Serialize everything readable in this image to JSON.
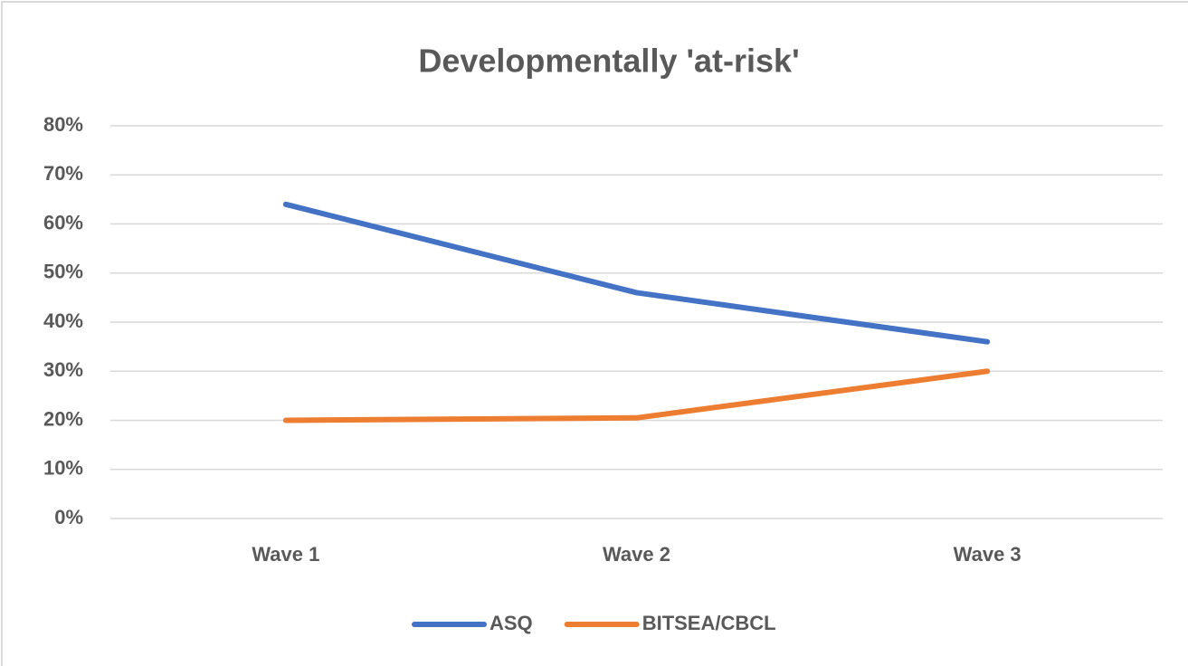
{
  "chart_data": {
    "type": "line",
    "title": "Developmentally 'at-risk'",
    "categories": [
      "Wave 1",
      "Wave 2",
      "Wave 3"
    ],
    "series": [
      {
        "name": "ASQ",
        "color": "#4472c4",
        "values": [
          64,
          46,
          36
        ]
      },
      {
        "name": "BITSEA/CBCL",
        "color": "#ed7d31",
        "values": [
          20,
          20.5,
          30
        ]
      }
    ],
    "ylim": [
      0,
      80
    ],
    "yticks": [
      {
        "value": 0,
        "label": "0%"
      },
      {
        "value": 10,
        "label": "10%"
      },
      {
        "value": 20,
        "label": "20%"
      },
      {
        "value": 30,
        "label": "30%"
      },
      {
        "value": 40,
        "label": "40%"
      },
      {
        "value": 50,
        "label": "50%"
      },
      {
        "value": 60,
        "label": "60%"
      },
      {
        "value": 70,
        "label": "70%"
      },
      {
        "value": 80,
        "label": "80%"
      }
    ],
    "grid": true,
    "legend": "bottom"
  }
}
